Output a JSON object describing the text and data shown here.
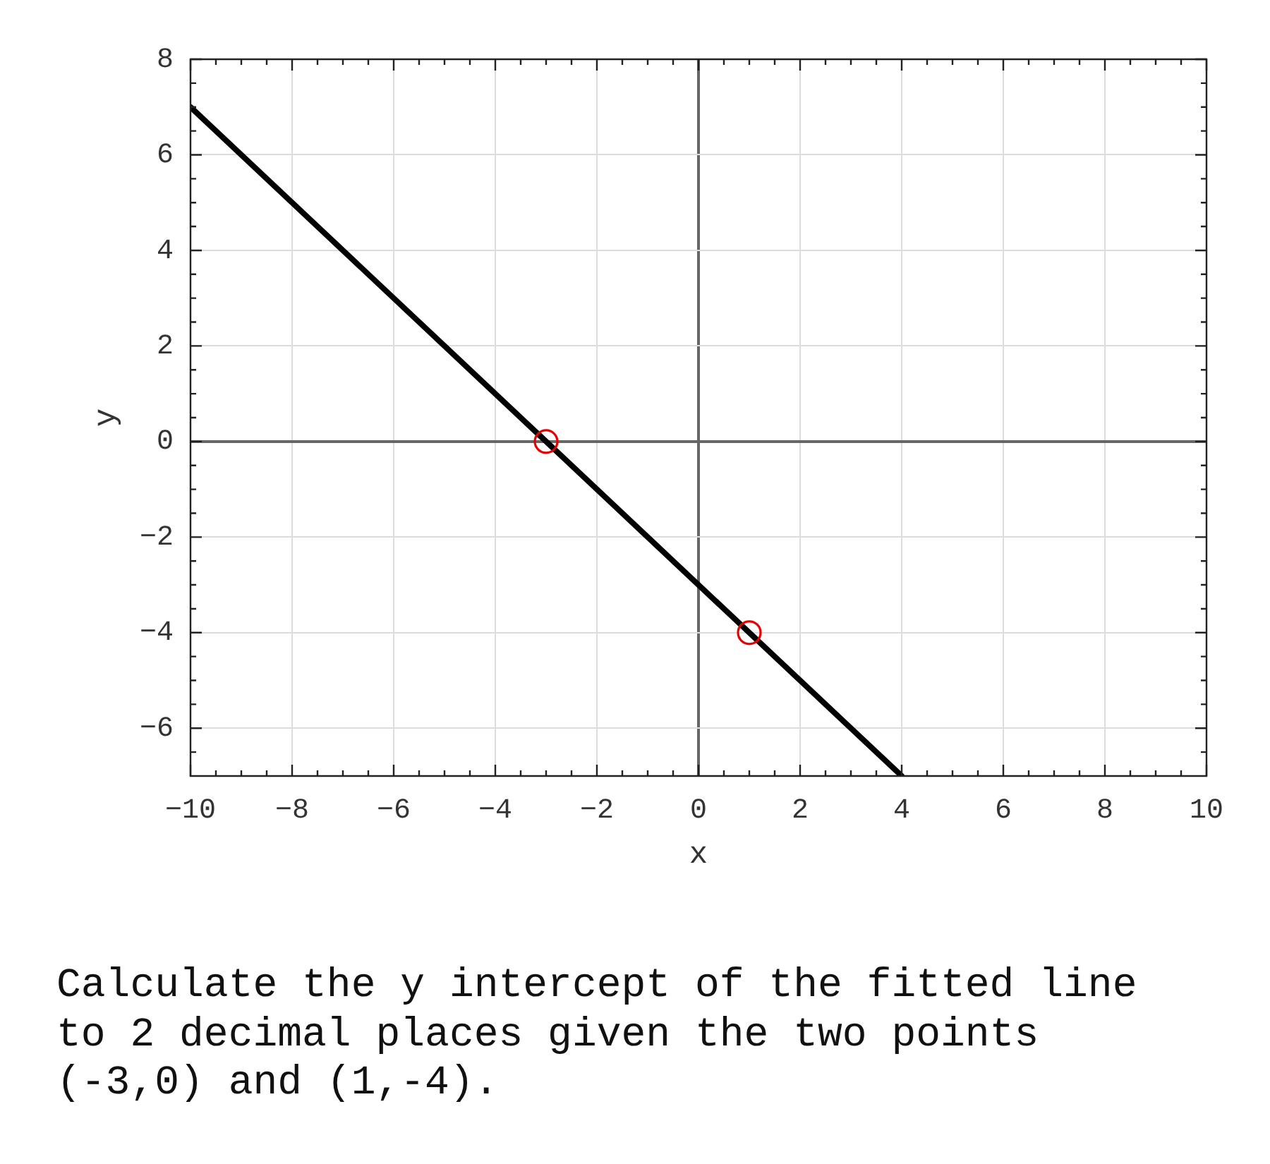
{
  "chart_data": {
    "type": "line",
    "xlabel": "x",
    "ylabel": "y",
    "xlim": [
      -10,
      10
    ],
    "ylim": [
      -7,
      8
    ],
    "xticks": [
      {
        "value": -10,
        "label": "−10"
      },
      {
        "value": -9.5,
        "label": null
      },
      {
        "value": -9,
        "label": null
      },
      {
        "value": -8.5,
        "label": null
      },
      {
        "value": -8,
        "label": "−8"
      },
      {
        "value": -7.5,
        "label": null
      },
      {
        "value": -7,
        "label": null
      },
      {
        "value": -6.5,
        "label": null
      },
      {
        "value": -6,
        "label": "−6"
      },
      {
        "value": -5.5,
        "label": null
      },
      {
        "value": -5,
        "label": null
      },
      {
        "value": -4.5,
        "label": null
      },
      {
        "value": -4,
        "label": "−4"
      },
      {
        "value": -3.5,
        "label": null
      },
      {
        "value": -3,
        "label": null
      },
      {
        "value": -2.5,
        "label": null
      },
      {
        "value": -2,
        "label": "−2"
      },
      {
        "value": -1.5,
        "label": null
      },
      {
        "value": -1,
        "label": null
      },
      {
        "value": -0.5,
        "label": null
      },
      0,
      {
        "value": 0.5,
        "label": null
      },
      {
        "value": 1,
        "label": null
      },
      {
        "value": 1.5,
        "label": null
      },
      2,
      {
        "value": 2.5,
        "label": null
      },
      {
        "value": 3,
        "label": null
      },
      {
        "value": 3.5,
        "label": null
      },
      4,
      {
        "value": 4.5,
        "label": null
      },
      {
        "value": 5,
        "label": null
      },
      {
        "value": 5.5,
        "label": null
      },
      6,
      {
        "value": 6.5,
        "label": null
      },
      {
        "value": 7,
        "label": null
      },
      {
        "value": 7.5,
        "label": null
      },
      8,
      {
        "value": 8.5,
        "label": null
      },
      {
        "value": 9,
        "label": null
      },
      {
        "value": 9.5,
        "label": null
      },
      10
    ],
    "yticks": [
      {
        "value": -6.5,
        "label": null
      },
      {
        "value": -6,
        "label": "−6"
      },
      {
        "value": -5.5,
        "label": null
      },
      {
        "value": -5,
        "label": null
      },
      {
        "value": -4.5,
        "label": null
      },
      {
        "value": -4,
        "label": "−4"
      },
      {
        "value": -3.5,
        "label": null
      },
      {
        "value": -3,
        "label": null
      },
      {
        "value": -2.5,
        "label": null
      },
      {
        "value": -2,
        "label": "−2"
      },
      {
        "value": -1.5,
        "label": null
      },
      {
        "value": -1,
        "label": null
      },
      {
        "value": -0.5,
        "label": null
      },
      0,
      {
        "value": 0.5,
        "label": null
      },
      {
        "value": 1,
        "label": null
      },
      {
        "value": 1.5,
        "label": null
      },
      2,
      {
        "value": 2.5,
        "label": null
      },
      {
        "value": 3,
        "label": null
      },
      {
        "value": 3.5,
        "label": null
      },
      4,
      {
        "value": 4.5,
        "label": null
      },
      {
        "value": 5,
        "label": null
      },
      {
        "value": 5.5,
        "label": null
      },
      6,
      {
        "value": 6.5,
        "label": null
      },
      {
        "value": 7,
        "label": null
      },
      {
        "value": 7.5,
        "label": null
      },
      8
    ],
    "grid": true,
    "series": [
      {
        "type": "line",
        "color": "#000000",
        "x": [
          -10,
          4
        ],
        "values": [
          7,
          -7
        ],
        "marker": "none"
      },
      {
        "type": "scatter",
        "color": "#e60000",
        "x": [
          -3,
          1
        ],
        "values": [
          0,
          -4
        ],
        "marker": "circle"
      }
    ],
    "annotations": [
      "Calculate the y intercept of the fitted line to 2 decimal places given the two points (-3,0) and (1,-4)."
    ]
  }
}
